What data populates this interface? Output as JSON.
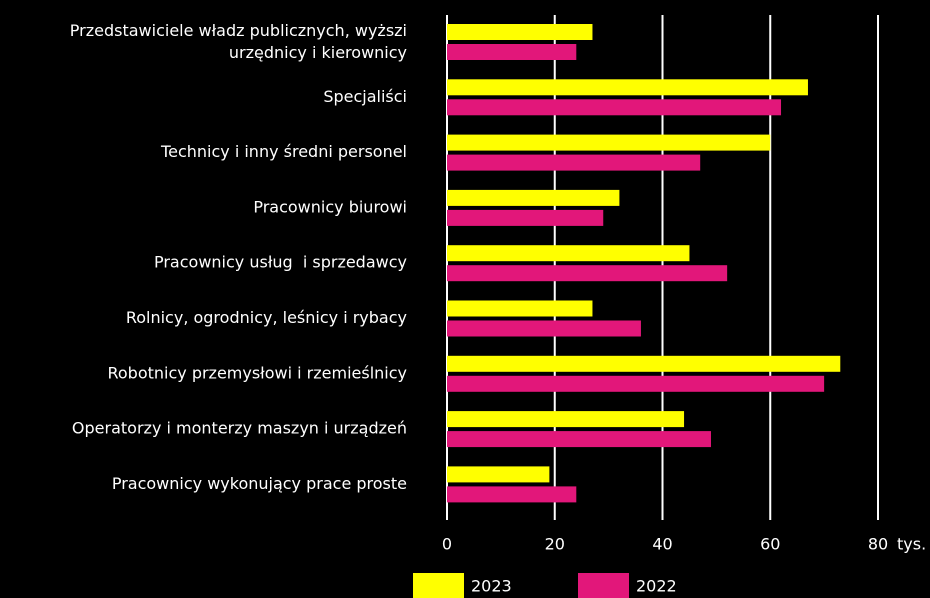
{
  "chart_data": {
    "type": "barh",
    "categories": [
      "Przedstawiciele władz publicznych, wyższi\nurzędnicy i kierownicy",
      "Specjaliści",
      "Technicy i inny średni personel",
      "Pracownicy biurowi",
      "Pracownicy usług  i sprzedawcy",
      "Rolnicy, ogrodnicy, leśnicy i rybacy",
      "Robotnicy przemysłowi i rzemieślnicy",
      "Operatorzy i monterzy maszyn i urządzeń",
      "Pracownicy wykonujący prace proste"
    ],
    "series": [
      {
        "name": "2023",
        "color": "#ffff00",
        "values": [
          27,
          67,
          60,
          32,
          45,
          27,
          73,
          44,
          19
        ]
      },
      {
        "name": "2022",
        "color": "#e2177a",
        "values": [
          24,
          62,
          47,
          29,
          52,
          36,
          70,
          49,
          24
        ]
      }
    ],
    "xlim": [
      0,
      80
    ],
    "xticks": [
      0,
      20,
      40,
      60,
      80
    ],
    "xlabel": "tys.",
    "grid": true
  }
}
